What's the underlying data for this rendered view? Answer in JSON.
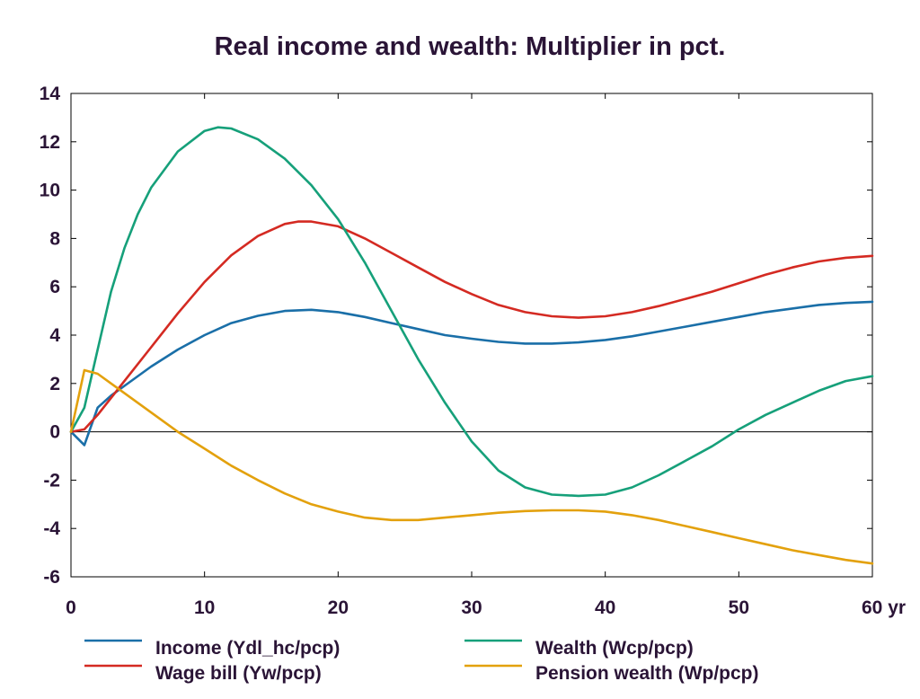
{
  "chart_data": {
    "type": "line",
    "title": "Real income and wealth: Multiplier in pct.",
    "xlim": [
      0,
      60
    ],
    "ylim": [
      -6,
      14
    ],
    "x_ticks": [
      "0",
      "10",
      "20",
      "30",
      "40",
      "50",
      "60 yr"
    ],
    "y_ticks": [
      "14",
      "12",
      "10",
      "8",
      "6",
      "4",
      "2",
      "0",
      "-2",
      "-4",
      "-6"
    ],
    "grid": false,
    "legend_position": "bottom",
    "colors": {
      "income": "#1a6fa8",
      "wage_bill": "#d42a22",
      "wealth": "#16a07a",
      "pension_wealth": "#e3a10d",
      "text": "#2a1436"
    },
    "series": [
      {
        "name": "Income (Ydl_hc/pcp)",
        "color": "#1a6fa8",
        "x": [
          0,
          1,
          2,
          3,
          4,
          6,
          8,
          10,
          12,
          14,
          16,
          18,
          20,
          22,
          24,
          26,
          28,
          30,
          32,
          34,
          36,
          38,
          40,
          42,
          44,
          46,
          48,
          50,
          52,
          54,
          56,
          58,
          60
        ],
        "values": [
          0,
          -0.55,
          1.0,
          1.5,
          1.9,
          2.7,
          3.4,
          4.0,
          4.5,
          4.8,
          5.0,
          5.05,
          4.95,
          4.75,
          4.5,
          4.25,
          4.0,
          3.85,
          3.72,
          3.65,
          3.65,
          3.7,
          3.8,
          3.95,
          4.15,
          4.35,
          4.55,
          4.75,
          4.95,
          5.1,
          5.25,
          5.33,
          5.38
        ]
      },
      {
        "name": "Wage bill (Yw/pcp)",
        "color": "#d42a22",
        "x": [
          0,
          1,
          2,
          3,
          4,
          6,
          8,
          10,
          12,
          14,
          16,
          17,
          18,
          20,
          22,
          24,
          26,
          28,
          30,
          32,
          34,
          36,
          38,
          40,
          42,
          44,
          46,
          48,
          50,
          52,
          54,
          56,
          58,
          60
        ],
        "values": [
          0,
          0.1,
          0.7,
          1.4,
          2.1,
          3.5,
          4.9,
          6.2,
          7.3,
          8.1,
          8.6,
          8.7,
          8.7,
          8.5,
          8.0,
          7.4,
          6.8,
          6.2,
          5.7,
          5.25,
          4.95,
          4.78,
          4.72,
          4.78,
          4.95,
          5.2,
          5.5,
          5.8,
          6.15,
          6.5,
          6.8,
          7.05,
          7.2,
          7.28
        ]
      },
      {
        "name": "Wealth (Wcp/pcp)",
        "color": "#16a07a",
        "x": [
          0,
          1,
          2,
          3,
          4,
          5,
          6,
          8,
          10,
          11,
          12,
          14,
          16,
          18,
          20,
          22,
          24,
          26,
          28,
          30,
          32,
          34,
          36,
          38,
          40,
          42,
          44,
          46,
          48,
          50,
          52,
          54,
          56,
          58,
          60
        ],
        "values": [
          0,
          1.0,
          3.4,
          5.8,
          7.6,
          9.0,
          10.1,
          11.6,
          12.45,
          12.6,
          12.55,
          12.1,
          11.3,
          10.2,
          8.8,
          7.0,
          5.0,
          3.0,
          1.2,
          -0.4,
          -1.6,
          -2.3,
          -2.6,
          -2.65,
          -2.6,
          -2.3,
          -1.8,
          -1.2,
          -0.6,
          0.1,
          0.7,
          1.2,
          1.7,
          2.1,
          2.3
        ]
      },
      {
        "name": "Pension wealth (Wp/pcp)",
        "color": "#e3a10d",
        "x": [
          0,
          1,
          2,
          4,
          6,
          8,
          10,
          12,
          14,
          16,
          18,
          20,
          22,
          24,
          26,
          28,
          30,
          32,
          34,
          36,
          38,
          40,
          42,
          44,
          46,
          48,
          50,
          52,
          54,
          56,
          58,
          60
        ],
        "values": [
          0,
          2.55,
          2.4,
          1.6,
          0.8,
          0.0,
          -0.7,
          -1.4,
          -2.0,
          -2.55,
          -3.0,
          -3.3,
          -3.55,
          -3.65,
          -3.65,
          -3.55,
          -3.45,
          -3.35,
          -3.28,
          -3.25,
          -3.25,
          -3.3,
          -3.45,
          -3.65,
          -3.9,
          -4.15,
          -4.4,
          -4.65,
          -4.9,
          -5.1,
          -5.3,
          -5.45
        ]
      }
    ]
  }
}
